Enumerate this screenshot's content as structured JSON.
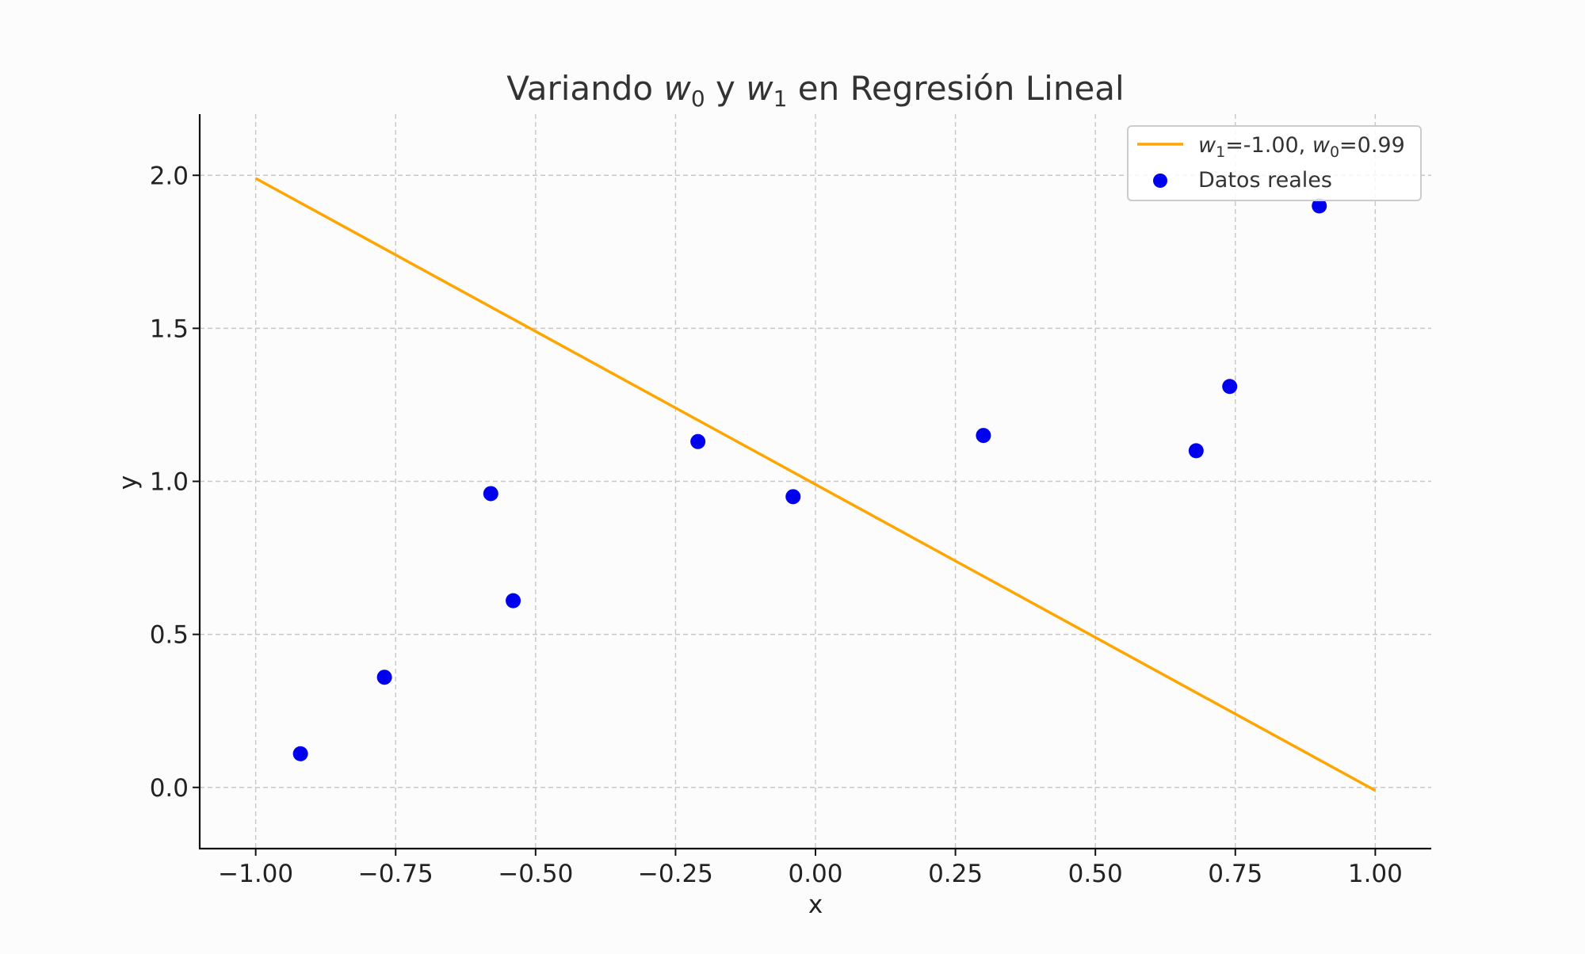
{
  "chart_data": {
    "type": "scatter",
    "title": {
      "prefix": "Variando ",
      "var1": "w",
      "sub1": "0",
      "middle": " y ",
      "var2": "w",
      "sub2": "1",
      "suffix": " en Regresión Lineal"
    },
    "xlabel": "x",
    "ylabel": "y",
    "xlim": [
      -1.1,
      1.1
    ],
    "ylim": [
      -0.2,
      2.2
    ],
    "grid": true,
    "legend_position": "top-right",
    "x_ticks": [
      {
        "value": -1.0,
        "label": "−1.00"
      },
      {
        "value": -0.75,
        "label": "−0.75"
      },
      {
        "value": -0.5,
        "label": "−0.50"
      },
      {
        "value": -0.25,
        "label": "−0.25"
      },
      {
        "value": 0.0,
        "label": "0.00"
      },
      {
        "value": 0.25,
        "label": "0.25"
      },
      {
        "value": 0.5,
        "label": "0.50"
      },
      {
        "value": 0.75,
        "label": "0.75"
      },
      {
        "value": 1.0,
        "label": "1.00"
      }
    ],
    "y_ticks": [
      {
        "value": 0.0,
        "label": "0.0"
      },
      {
        "value": 0.5,
        "label": "0.5"
      },
      {
        "value": 1.0,
        "label": "1.0"
      },
      {
        "value": 1.5,
        "label": "1.5"
      },
      {
        "value": 2.0,
        "label": "2.0"
      }
    ],
    "line_series": {
      "legend": {
        "var1": "w",
        "sub1": "1",
        "text1": "=-1.00, ",
        "var2": "w",
        "sub2": "0",
        "text2": "=0.99"
      },
      "color": "#FFA500",
      "x": [
        -1.0,
        1.0
      ],
      "y": [
        1.99,
        -0.01
      ]
    },
    "scatter_series": {
      "name": "Datos reales",
      "color": "#0000EE",
      "points": [
        {
          "x": -0.92,
          "y": 0.11
        },
        {
          "x": -0.77,
          "y": 0.36
        },
        {
          "x": -0.58,
          "y": 0.96
        },
        {
          "x": -0.54,
          "y": 0.61
        },
        {
          "x": -0.21,
          "y": 1.13
        },
        {
          "x": -0.04,
          "y": 0.95
        },
        {
          "x": 0.3,
          "y": 1.15
        },
        {
          "x": 0.68,
          "y": 1.1
        },
        {
          "x": 0.74,
          "y": 1.31
        },
        {
          "x": 0.9,
          "y": 1.9
        }
      ]
    }
  }
}
